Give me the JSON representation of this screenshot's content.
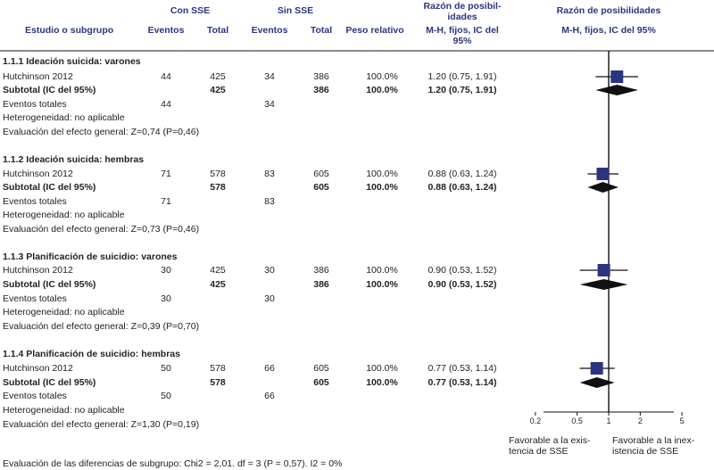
{
  "colors": {
    "header": "#2a3580",
    "box": "#2a3580",
    "diamond": "#111111",
    "line": "#111111"
  },
  "header": {
    "study": "Estudio o subgrupo",
    "group1": "Con SSE",
    "group2": "Sin SSE",
    "events": "Eventos",
    "total": "Total",
    "weight": "Peso relativo",
    "or_col_l1": "Razón de posibil-",
    "or_col_l2": "idades",
    "or_col_l3": "M-H, fijos, IC del",
    "or_col_l4": "95%",
    "plot_l1": "Razón de posibilidades",
    "plot_l2": "M-H, fijos, IC del 95%"
  },
  "favours_left_l1": "Favorable a la exis-",
  "favours_left_l2": "tencia de SSE",
  "favours_right_l1": "Favorable a la inex-",
  "favours_right_l2": "istencia de SSE",
  "footer": "Evaluación de las diferencias de subgrupo: Chi2 = 2,01. df = 3 (P = 0,57). I2 = 0%",
  "chart_data": {
    "type": "forest",
    "xscale": "log",
    "xticks": [
      "0.2",
      "0.5",
      "1",
      "2",
      "5"
    ],
    "subgroups": [
      {
        "title": "1.1.1 Ideación suicida: varones",
        "study": "Hutchinson 2012",
        "e1": "44",
        "n1": "425",
        "e2": "34",
        "n2": "386",
        "weight": "100.0%",
        "ci_text": "1.20 (0.75, 1.91)",
        "or": 1.2,
        "lo": 0.75,
        "hi": 1.91,
        "subtotal_label": "Subtotal (IC del 95%)",
        "sub_n1": "425",
        "sub_n2": "386",
        "sub_weight": "100.0%",
        "sub_ci_text": "1.20 (0.75, 1.91)",
        "events_label": "Eventos totales",
        "tot_e1": "44",
        "tot_e2": "34",
        "heterogeneity": "Heterogeneidad: no aplicable",
        "effect": "Evaluación del efecto general: Z=0,74 (P=0,46)"
      },
      {
        "title": "1.1.2 Ideación suicida: hembras",
        "study": "Hutchinson 2012",
        "e1": "71",
        "n1": "578",
        "e2": "83",
        "n2": "605",
        "weight": "100.0%",
        "ci_text": "0.88 (0.63, 1.24)",
        "or": 0.88,
        "lo": 0.63,
        "hi": 1.24,
        "subtotal_label": "Subtotal (IC del 95%)",
        "sub_n1": "578",
        "sub_n2": "605",
        "sub_weight": "100.0%",
        "sub_ci_text": "0.88 (0.63, 1.24)",
        "events_label": "Eventos totales",
        "tot_e1": "71",
        "tot_e2": "83",
        "heterogeneity": "Heterogeneidad: no aplicable",
        "effect": "Evaluación del efecto general: Z=0,73 (P=0,46)"
      },
      {
        "title": "1.1.3 Planificación de suicidio: varones",
        "study": "Hutchinson 2012",
        "e1": "30",
        "n1": "425",
        "e2": "30",
        "n2": "386",
        "weight": "100.0%",
        "ci_text": "0.90 (0.53, 1.52)",
        "or": 0.9,
        "lo": 0.53,
        "hi": 1.52,
        "subtotal_label": "Subtotal (IC del 95%)",
        "sub_n1": "425",
        "sub_n2": "386",
        "sub_weight": "100.0%",
        "sub_ci_text": "0.90 (0.53, 1.52)",
        "events_label": "Eventos totales",
        "tot_e1": "30",
        "tot_e2": "30",
        "heterogeneity": "Heterogeneidad: no aplicable",
        "effect": "Evaluación del efecto general: Z=0,39 (P=0,70)"
      },
      {
        "title": "1.1.4 Planificación de suicidio: hembras",
        "study": "Hutchinson 2012",
        "e1": "50",
        "n1": "578",
        "e2": "66",
        "n2": "605",
        "weight": "100.0%",
        "ci_text": "0.77 (0.53, 1.14)",
        "or": 0.77,
        "lo": 0.53,
        "hi": 1.14,
        "subtotal_label": "Subtotal (IC del 95%)",
        "sub_n1": "578",
        "sub_n2": "605",
        "sub_weight": "100.0%",
        "sub_ci_text": "0.77 (0.53, 1.14)",
        "events_label": "Eventos totales",
        "tot_e1": "50",
        "tot_e2": "66",
        "heterogeneity": "Heterogeneidad: no aplicable",
        "effect": "Evaluación del efecto general: Z=1,30 (P=0,19)"
      }
    ]
  }
}
